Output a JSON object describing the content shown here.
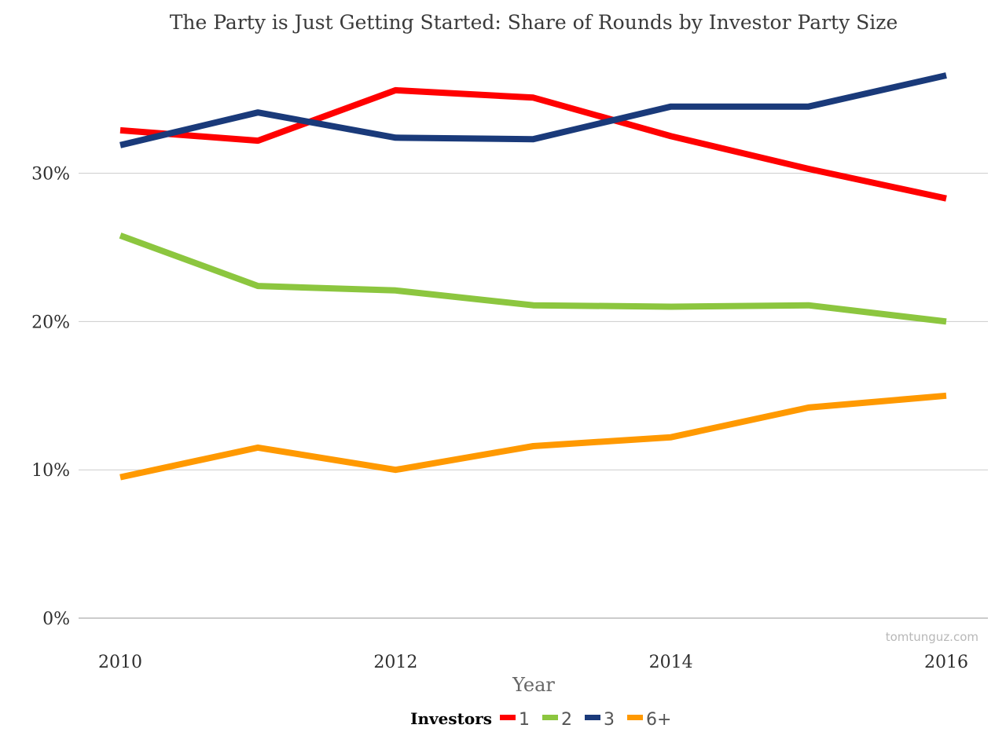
{
  "chart_data": {
    "type": "line",
    "title": "The Party is Just Getting Started: Share of Rounds by Investor Party Size",
    "xlabel": "Year",
    "ylabel": "",
    "x": [
      2010,
      2011,
      2012,
      2013,
      2014,
      2015,
      2016
    ],
    "x_ticks": [
      "2010",
      "2012",
      "2014",
      "2016"
    ],
    "y_ticks": [
      "0%",
      "10%",
      "20%",
      "30%"
    ],
    "ylim": [
      0,
      38
    ],
    "grid": true,
    "legend": {
      "title": "Investors",
      "placement": "bottom"
    },
    "series": [
      {
        "name": "1",
        "color": "#ff0000",
        "values": [
          32.9,
          32.2,
          35.6,
          35.1,
          32.5,
          30.3,
          28.3
        ]
      },
      {
        "name": "2",
        "color": "#8cc63f",
        "values": [
          25.8,
          22.4,
          22.1,
          21.1,
          21.0,
          21.1,
          20.0
        ]
      },
      {
        "name": "3",
        "color": "#1a3a7a",
        "values": [
          31.9,
          34.1,
          32.4,
          32.3,
          34.5,
          34.5,
          36.6
        ]
      },
      {
        "name": "6+",
        "color": "#ff9900",
        "values": [
          9.5,
          11.5,
          10.0,
          11.6,
          12.2,
          14.2,
          15.0
        ]
      }
    ],
    "watermark": "tomtunguz.com"
  }
}
